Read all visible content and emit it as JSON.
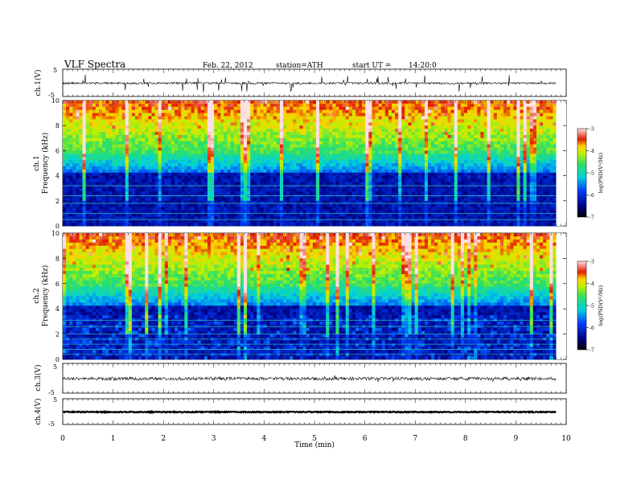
{
  "header": {
    "title": "VLF Spectra",
    "date": "Feb. 22, 2012",
    "station": "station=ATH",
    "start": "start UT =",
    "start_time": "14:20:0"
  },
  "colors": {
    "low": "#000000",
    "mid_low": "#0020c0",
    "mid": "#00c8c8",
    "mid_high": "#40e040",
    "high_mid": "#f0e000",
    "high": "#e02000",
    "top": "#ffb0b0"
  },
  "chart_data": [
    {
      "type": "line",
      "id": "ch1-waveform",
      "ylabel": "ch.1(V)",
      "ylim": [
        -5,
        5
      ],
      "y_ticks": [
        "5",
        "-5"
      ],
      "xlim": [
        0,
        10
      ],
      "baseline": 0,
      "note_shape": "noisy waveform with spikes"
    },
    {
      "type": "heatmap",
      "id": "ch1-spectrogram",
      "ylabel_channel": "ch.1",
      "ylabel": "Frequency (kHz)",
      "ylim": [
        0,
        10
      ],
      "y_ticks": [
        "0",
        "2",
        "4",
        "6",
        "8",
        "10"
      ],
      "xlim": [
        0,
        9.8
      ],
      "colorbar": {
        "label": "log(PSD(V²/Hz)",
        "range": [
          -7,
          -3
        ],
        "ticks": [
          "-3",
          "-4",
          "-5",
          "-6",
          "-7"
        ]
      }
    },
    {
      "type": "heatmap",
      "id": "ch2-spectrogram",
      "ylabel_channel": "ch.2",
      "ylabel": "Frequency (kHz)",
      "ylim": [
        0,
        10
      ],
      "y_ticks": [
        "0",
        "2",
        "4",
        "6",
        "8",
        "10"
      ],
      "xlim": [
        0,
        9.8
      ],
      "colorbar": {
        "label": "log(PSD(V²/Hz)",
        "range": [
          -7,
          -3
        ],
        "ticks": [
          "-3",
          "-4",
          "-5",
          "-6",
          "-7"
        ]
      }
    },
    {
      "type": "line",
      "id": "ch3-waveform",
      "ylabel": "ch.3(V)",
      "ylim": [
        -5,
        5
      ],
      "y_ticks": [
        "5",
        "-5"
      ],
      "xlim": [
        0,
        10
      ],
      "baseline": 0
    },
    {
      "type": "line",
      "id": "ch4-waveform",
      "ylabel": "ch.4(V)",
      "ylim": [
        -5,
        5
      ],
      "y_ticks": [
        "5",
        "-5"
      ],
      "xlim": [
        0,
        10
      ],
      "baseline": 0
    }
  ],
  "x_axis": {
    "label": "Time (min)",
    "ticks": [
      "0",
      "1",
      "2",
      "3",
      "4",
      "5",
      "6",
      "7",
      "8",
      "9",
      "10"
    ]
  }
}
